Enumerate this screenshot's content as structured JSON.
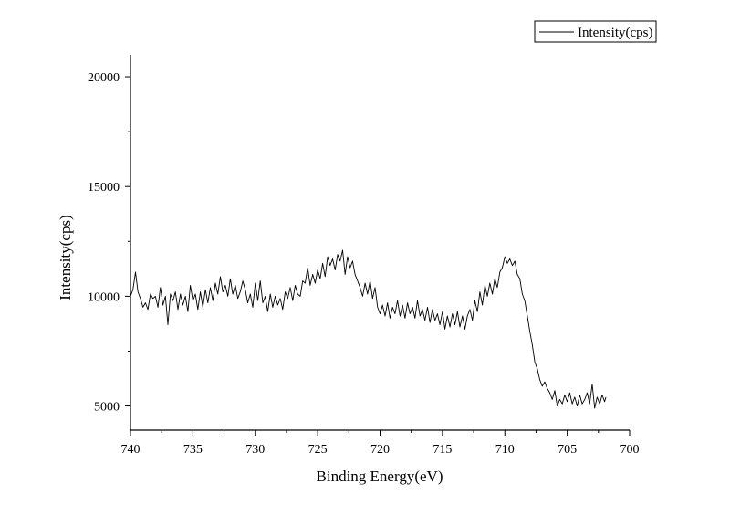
{
  "chart_data": {
    "type": "line",
    "xlabel": "Binding Energy(eV)",
    "ylabel": "Intensity(cps)",
    "xlim": [
      740,
      700
    ],
    "ylim": [
      3900,
      21000
    ],
    "x_reversed": true,
    "x_ticks": [
      740,
      735,
      730,
      725,
      720,
      715,
      710,
      705,
      700
    ],
    "y_ticks": [
      5000,
      10000,
      15000,
      20000
    ],
    "legend_position": "top-right",
    "series": [
      {
        "name": "Intensity(cps)",
        "color": "#000000",
        "points": [
          [
            740.0,
            10000
          ],
          [
            739.8,
            10300
          ],
          [
            739.6,
            11100
          ],
          [
            739.4,
            10200
          ],
          [
            739.2,
            9900
          ],
          [
            739.0,
            9500
          ],
          [
            738.8,
            9700
          ],
          [
            738.6,
            9400
          ],
          [
            738.4,
            10100
          ],
          [
            738.2,
            9900
          ],
          [
            738.0,
            10000
          ],
          [
            737.8,
            9500
          ],
          [
            737.6,
            10400
          ],
          [
            737.4,
            9600
          ],
          [
            737.2,
            10000
          ],
          [
            737.0,
            8700
          ],
          [
            736.8,
            10100
          ],
          [
            736.6,
            9800
          ],
          [
            736.4,
            10200
          ],
          [
            736.2,
            9400
          ],
          [
            736.0,
            10100
          ],
          [
            735.8,
            9600
          ],
          [
            735.6,
            10000
          ],
          [
            735.4,
            9300
          ],
          [
            735.2,
            10500
          ],
          [
            735.0,
            9800
          ],
          [
            734.8,
            10100
          ],
          [
            734.6,
            9400
          ],
          [
            734.4,
            10200
          ],
          [
            734.2,
            9500
          ],
          [
            734.0,
            10300
          ],
          [
            733.8,
            9700
          ],
          [
            733.6,
            10400
          ],
          [
            733.4,
            9800
          ],
          [
            733.2,
            10600
          ],
          [
            733.0,
            10100
          ],
          [
            732.8,
            10900
          ],
          [
            732.6,
            10200
          ],
          [
            732.4,
            10500
          ],
          [
            732.2,
            10000
          ],
          [
            732.0,
            10800
          ],
          [
            731.8,
            10100
          ],
          [
            731.6,
            10500
          ],
          [
            731.4,
            9900
          ],
          [
            731.2,
            10200
          ],
          [
            731.0,
            10700
          ],
          [
            730.8,
            10300
          ],
          [
            730.6,
            9700
          ],
          [
            730.4,
            10100
          ],
          [
            730.2,
            9500
          ],
          [
            730.0,
            10600
          ],
          [
            729.8,
            9800
          ],
          [
            729.6,
            10700
          ],
          [
            729.4,
            9700
          ],
          [
            729.2,
            10000
          ],
          [
            729.0,
            9300
          ],
          [
            728.8,
            10100
          ],
          [
            728.6,
            9500
          ],
          [
            728.4,
            10000
          ],
          [
            728.2,
            9600
          ],
          [
            728.0,
            9900
          ],
          [
            727.8,
            9400
          ],
          [
            727.6,
            10200
          ],
          [
            727.4,
            9900
          ],
          [
            727.2,
            10400
          ],
          [
            727.0,
            9800
          ],
          [
            726.8,
            10500
          ],
          [
            726.6,
            10100
          ],
          [
            726.4,
            10000
          ],
          [
            726.2,
            10700
          ],
          [
            726.0,
            10600
          ],
          [
            725.8,
            11300
          ],
          [
            725.6,
            10500
          ],
          [
            725.4,
            11000
          ],
          [
            725.2,
            10600
          ],
          [
            725.0,
            11200
          ],
          [
            724.8,
            10800
          ],
          [
            724.6,
            11500
          ],
          [
            724.4,
            10900
          ],
          [
            724.2,
            11800
          ],
          [
            724.0,
            11400
          ],
          [
            723.8,
            11700
          ],
          [
            723.6,
            11200
          ],
          [
            723.4,
            11900
          ],
          [
            723.2,
            11600
          ],
          [
            723.0,
            12100
          ],
          [
            722.8,
            11000
          ],
          [
            722.6,
            11800
          ],
          [
            722.4,
            11300
          ],
          [
            722.2,
            11600
          ],
          [
            722.0,
            11000
          ],
          [
            721.8,
            10700
          ],
          [
            721.6,
            10400
          ],
          [
            721.4,
            10000
          ],
          [
            721.2,
            10600
          ],
          [
            721.0,
            10100
          ],
          [
            720.8,
            10700
          ],
          [
            720.6,
            9900
          ],
          [
            720.4,
            10400
          ],
          [
            720.2,
            9500
          ],
          [
            720.0,
            9200
          ],
          [
            719.8,
            9600
          ],
          [
            719.6,
            9100
          ],
          [
            719.4,
            9700
          ],
          [
            719.2,
            9000
          ],
          [
            719.0,
            9500
          ],
          [
            718.8,
            9200
          ],
          [
            718.6,
            9800
          ],
          [
            718.4,
            9100
          ],
          [
            718.2,
            9600
          ],
          [
            718.0,
            9000
          ],
          [
            717.8,
            9700
          ],
          [
            717.6,
            9200
          ],
          [
            717.4,
            9500
          ],
          [
            717.2,
            9000
          ],
          [
            717.0,
            9800
          ],
          [
            716.8,
            9100
          ],
          [
            716.6,
            9400
          ],
          [
            716.4,
            8900
          ],
          [
            716.2,
            9500
          ],
          [
            716.0,
            8800
          ],
          [
            715.8,
            9400
          ],
          [
            715.6,
            8900
          ],
          [
            715.4,
            9200
          ],
          [
            715.2,
            8700
          ],
          [
            715.0,
            9300
          ],
          [
            714.8,
            8500
          ],
          [
            714.6,
            9100
          ],
          [
            714.4,
            8600
          ],
          [
            714.2,
            9200
          ],
          [
            714.0,
            8700
          ],
          [
            713.8,
            9300
          ],
          [
            713.6,
            8600
          ],
          [
            713.4,
            9100
          ],
          [
            713.2,
            8500
          ],
          [
            713.0,
            9100
          ],
          [
            712.8,
            9400
          ],
          [
            712.6,
            8900
          ],
          [
            712.4,
            9800
          ],
          [
            712.2,
            9300
          ],
          [
            712.0,
            10200
          ],
          [
            711.8,
            9600
          ],
          [
            711.6,
            10500
          ],
          [
            711.4,
            10000
          ],
          [
            711.2,
            10600
          ],
          [
            711.0,
            10100
          ],
          [
            710.8,
            10800
          ],
          [
            710.6,
            10400
          ],
          [
            710.4,
            11100
          ],
          [
            710.2,
            11300
          ],
          [
            710.0,
            11800
          ],
          [
            709.8,
            11500
          ],
          [
            709.6,
            11700
          ],
          [
            709.4,
            11400
          ],
          [
            709.2,
            11600
          ],
          [
            709.0,
            11000
          ],
          [
            708.8,
            10800
          ],
          [
            708.6,
            10100
          ],
          [
            708.4,
            9800
          ],
          [
            708.2,
            9100
          ],
          [
            708.0,
            8400
          ],
          [
            707.8,
            7800
          ],
          [
            707.6,
            7000
          ],
          [
            707.4,
            6700
          ],
          [
            707.2,
            6200
          ],
          [
            707.0,
            5900
          ],
          [
            706.8,
            6100
          ],
          [
            706.6,
            5800
          ],
          [
            706.4,
            5600
          ],
          [
            706.2,
            5300
          ],
          [
            706.0,
            5700
          ],
          [
            705.8,
            5000
          ],
          [
            705.6,
            5300
          ],
          [
            705.4,
            5100
          ],
          [
            705.2,
            5500
          ],
          [
            705.0,
            5200
          ],
          [
            704.8,
            5600
          ],
          [
            704.6,
            5100
          ],
          [
            704.4,
            5400
          ],
          [
            704.2,
            5000
          ],
          [
            704.0,
            5500
          ],
          [
            703.8,
            5100
          ],
          [
            703.6,
            5300
          ],
          [
            703.4,
            5600
          ],
          [
            703.2,
            5100
          ],
          [
            703.0,
            6000
          ],
          [
            702.8,
            4900
          ],
          [
            702.6,
            5400
          ],
          [
            702.4,
            5100
          ],
          [
            702.2,
            5500
          ],
          [
            702.0,
            5200
          ],
          [
            701.9,
            5400
          ]
        ]
      }
    ]
  }
}
